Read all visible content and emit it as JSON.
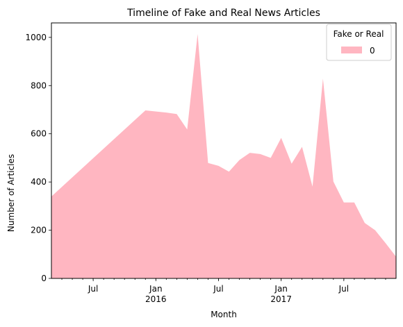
{
  "chart_data": {
    "type": "area",
    "title": "Timeline of Fake and Real News Articles",
    "xlabel": "Month",
    "ylabel": "Number of Articles",
    "ylim": [
      0,
      1060
    ],
    "xlim": [
      "2015-03",
      "2017-12"
    ],
    "grid": false,
    "legend": {
      "title": "Fake or Real",
      "placement": "top-right",
      "entries": [
        "0"
      ]
    },
    "yticks": [
      0,
      200,
      400,
      600,
      800,
      1000
    ],
    "xticks_major": [
      {
        "date": "2015-07",
        "label": "Jul"
      },
      {
        "date": "2016-01",
        "label": "Jan",
        "year": "2016"
      },
      {
        "date": "2016-07",
        "label": "Jul"
      },
      {
        "date": "2017-01",
        "label": "Jan",
        "year": "2017"
      },
      {
        "date": "2017-07",
        "label": "Jul"
      }
    ],
    "series": [
      {
        "name": "0",
        "color": "#ffb6c1",
        "x": [
          "2015-03",
          "2015-12",
          "2016-02",
          "2016-03",
          "2016-04",
          "2016-05",
          "2016-06",
          "2016-07",
          "2016-08",
          "2016-09",
          "2016-10",
          "2016-11",
          "2016-12",
          "2017-01",
          "2017-02",
          "2017-03",
          "2017-04",
          "2017-05",
          "2017-06",
          "2017-07",
          "2017-08",
          "2017-09",
          "2017-10",
          "2017-11",
          "2017-12"
        ],
        "values": [
          340,
          697,
          688,
          682,
          618,
          1014,
          479,
          467,
          443,
          491,
          521,
          516,
          500,
          583,
          476,
          546,
          381,
          829,
          402,
          315,
          315,
          230,
          200,
          146,
          90
        ]
      }
    ]
  }
}
